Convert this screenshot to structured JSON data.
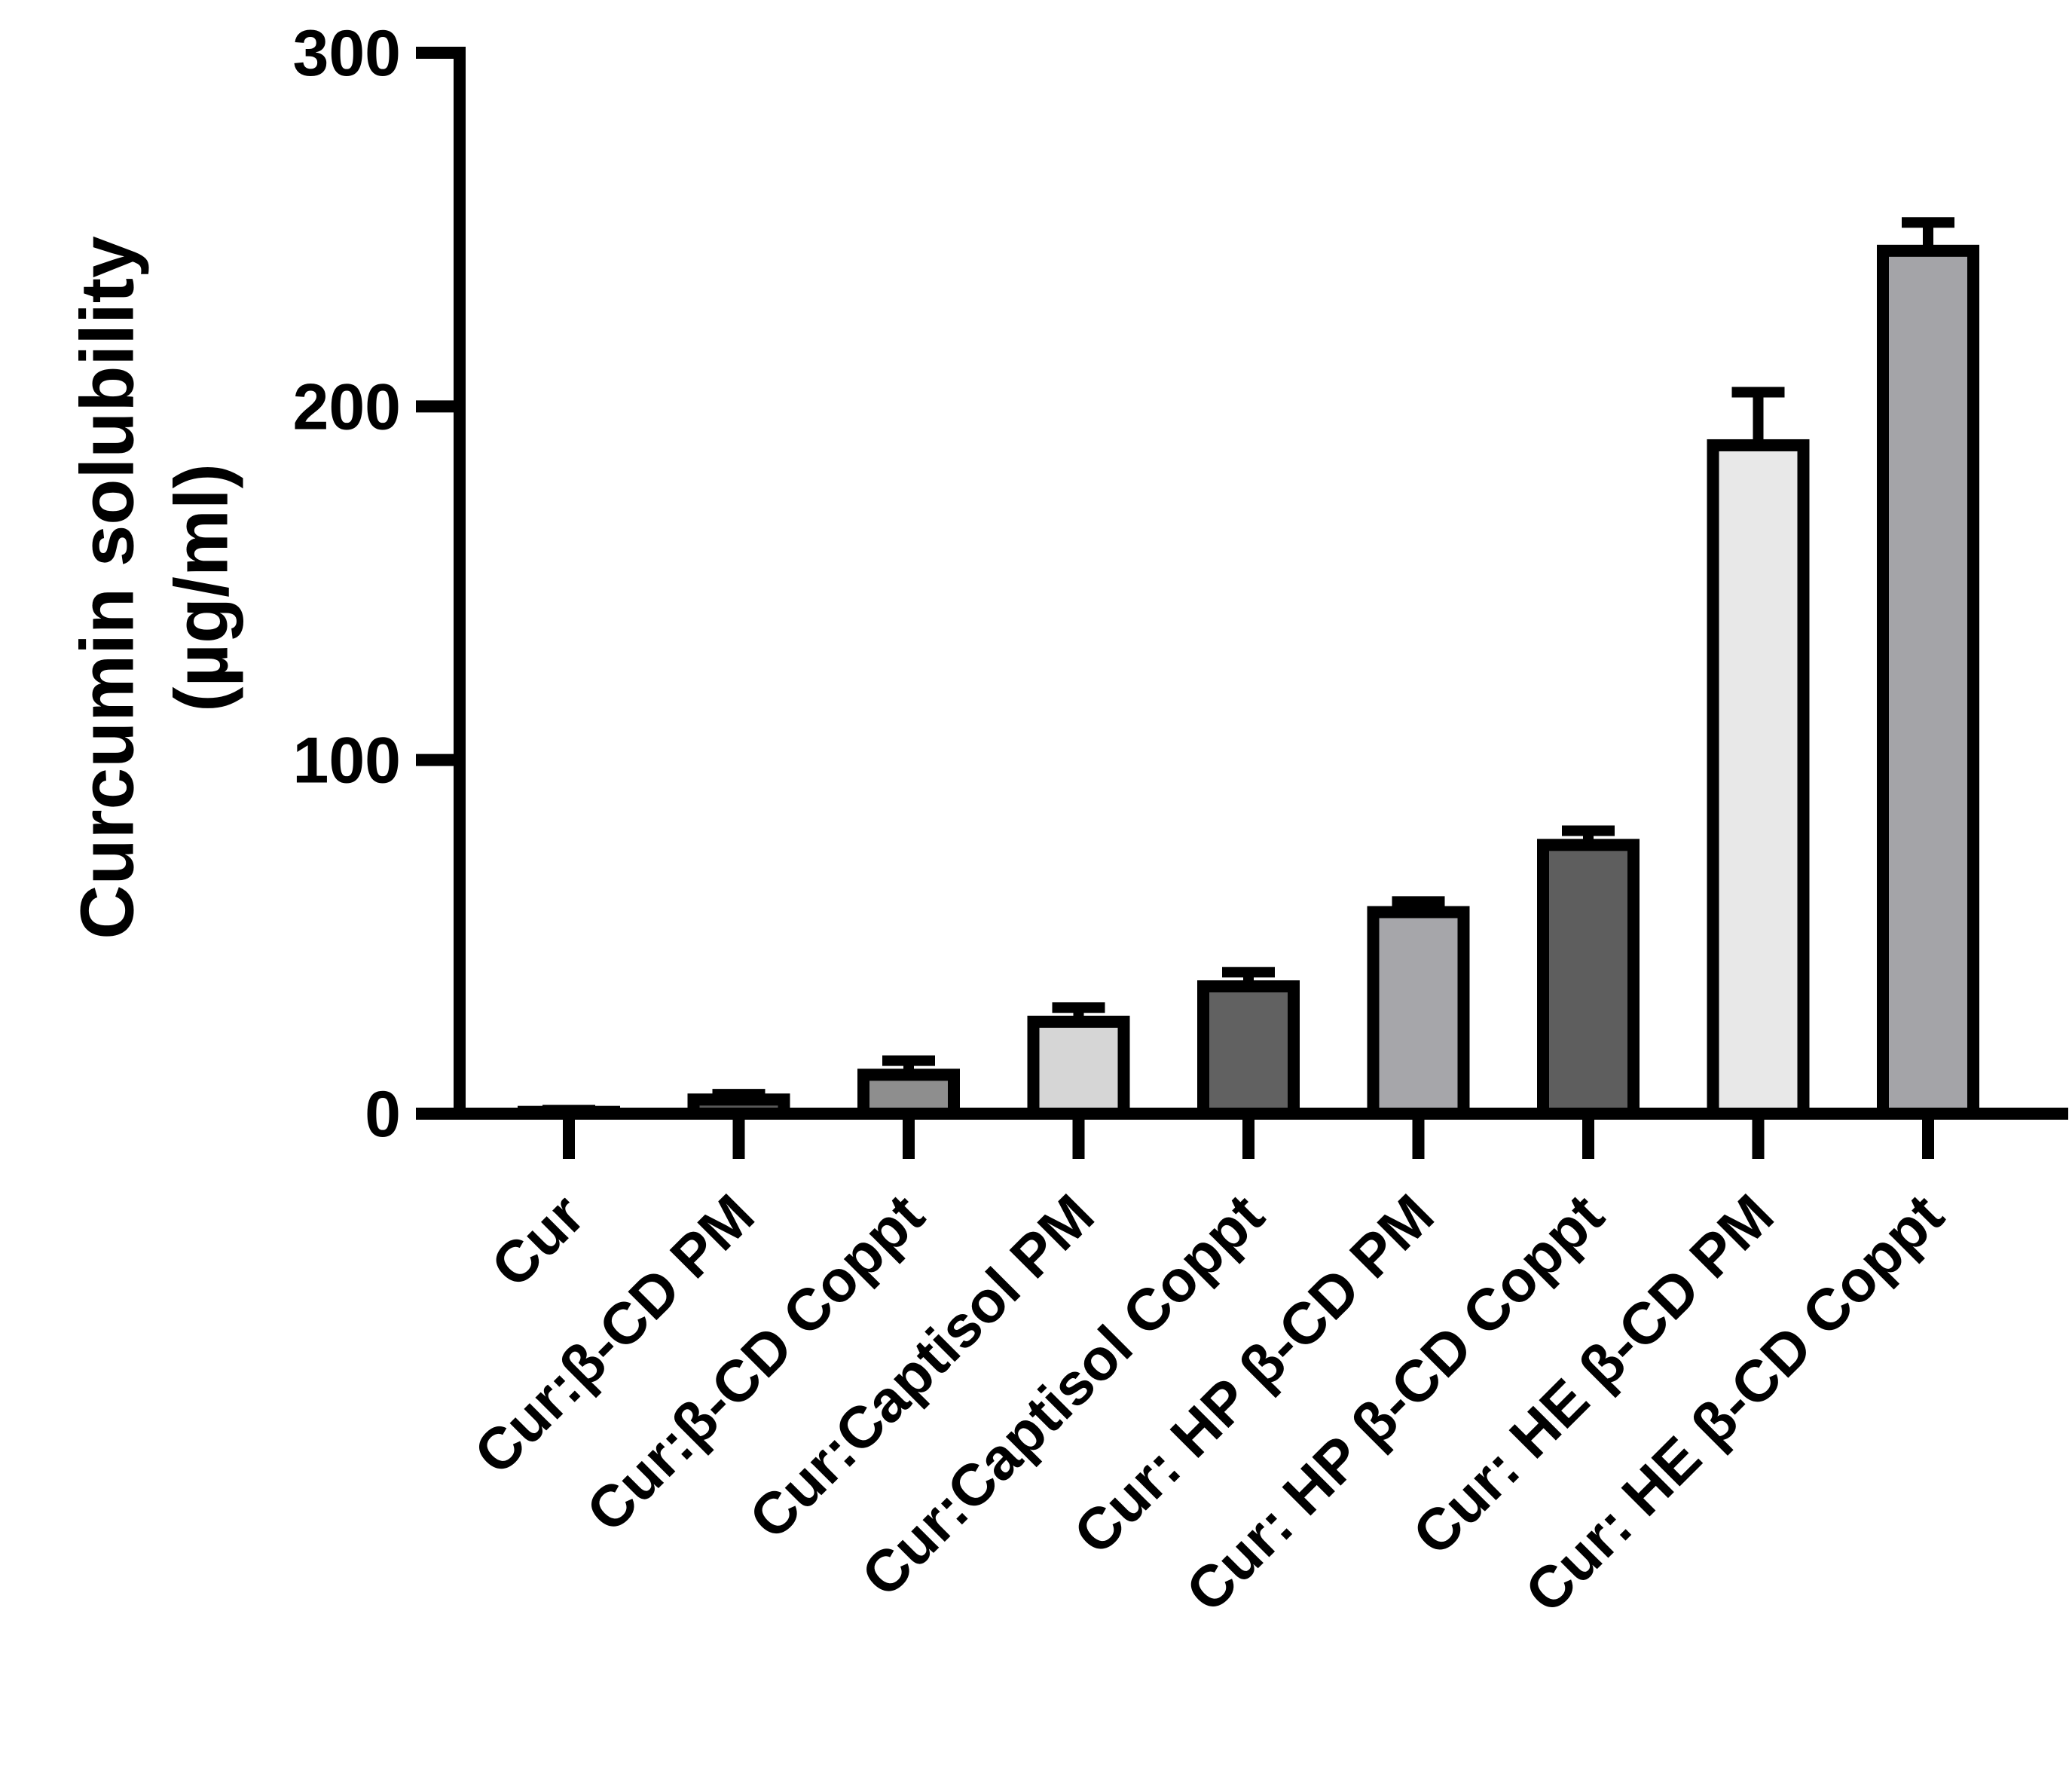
{
  "chart_data": {
    "type": "bar",
    "title": "",
    "xlabel": "",
    "ylabel_lines": [
      "Curcumin solubility",
      "(µg/ml)"
    ],
    "ylim": [
      0,
      300
    ],
    "yticks": [
      "0",
      "100",
      "200",
      "300"
    ],
    "grid": false,
    "categories": [
      "Cur",
      "Cur:β-CD PM",
      "Cur:β-CD Coppt",
      "Cur:Captisol PM",
      "Cur:Captisol Coppt",
      "Cur: HP β-CD PM",
      "Cur: HP β-CD Coppt",
      "Cur: HE β-CD PM",
      "Cur: HE β-CD Coppt"
    ],
    "values": [
      0.5,
      4,
      11,
      26,
      36,
      57,
      76,
      189,
      244
    ],
    "errors": [
      0.5,
      1.5,
      4,
      4,
      4,
      3,
      4,
      15,
      8
    ],
    "colors": [
      "#b0b0b0",
      "#585858",
      "#8e8e8e",
      "#d6d6d6",
      "#616161",
      "#a6a6aa",
      "#5e5e5e",
      "#e8e8e8",
      "#a4a4a8"
    ]
  }
}
